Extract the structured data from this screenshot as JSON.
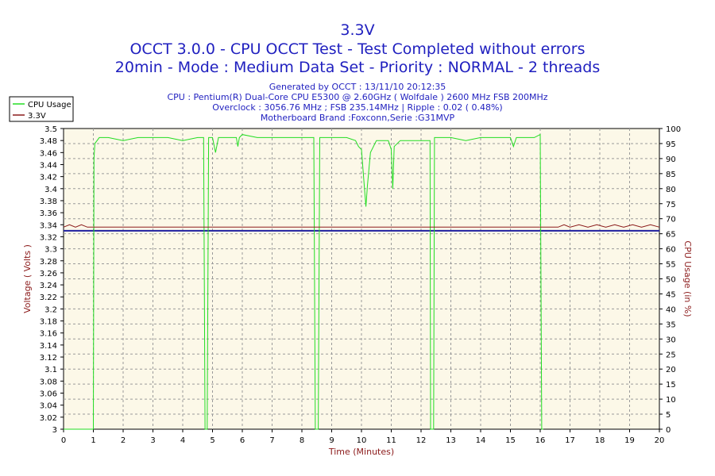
{
  "chart_data": {
    "type": "line",
    "title": "3.3V",
    "subtitle1": "OCCT 3.0.0 - CPU OCCT Test - Test Completed without errors",
    "subtitle2": "20min - Mode : Medium Data Set - Priority : NORMAL - 2 threads",
    "info": [
      "Generated by OCCT : 13/11/10 20:12:35",
      "CPU : Pentium(R) Dual-Core CPU E5300 @ 2.60GHz ( Wolfdale ) 2600 MHz FSB 200MHz",
      "Overclock : 3056.76 MHz ; FSB 235.14MHz | Ripple : 0.02 ( 0.48%)",
      "Motherboard Brand :Foxconn,Serie :G31MVP"
    ],
    "xlabel": "Time (Minutes)",
    "ylabel_left": "Voltage ( Volts )",
    "ylabel_right": "CPU Usage (in %)",
    "xlim": [
      0,
      20
    ],
    "ylim_left": [
      3.0,
      3.5
    ],
    "ylim_right": [
      0,
      100
    ],
    "x_ticks": [
      "0",
      "1",
      "2",
      "3",
      "4",
      "5",
      "6",
      "7",
      "8",
      "9",
      "10",
      "11",
      "12",
      "13",
      "14",
      "15",
      "16",
      "17",
      "18",
      "19",
      "20"
    ],
    "y_left_ticks": [
      "3",
      "3.02",
      "3.04",
      "3.06",
      "3.08",
      "3.1",
      "3.12",
      "3.14",
      "3.16",
      "3.18",
      "3.2",
      "3.22",
      "3.24",
      "3.26",
      "3.28",
      "3.3",
      "3.32",
      "3.34",
      "3.36",
      "3.38",
      "3.4",
      "3.42",
      "3.44",
      "3.46",
      "3.48",
      "3.5"
    ],
    "y_right_ticks": [
      "0",
      "5",
      "10",
      "15",
      "20",
      "25",
      "30",
      "35",
      "40",
      "45",
      "50",
      "55",
      "60",
      "65",
      "70",
      "75",
      "80",
      "85",
      "90",
      "95",
      "100"
    ],
    "legend": [
      {
        "name": "CPU Usage",
        "color": "#22dd22"
      },
      {
        "name": "3.3V",
        "color": "#8b1a1a"
      }
    ],
    "legend_position": "top-left",
    "grid": true,
    "colors": {
      "plot_bg": "#fcf8e8",
      "grid": "#9a9a9a",
      "cpu": "#22dd22",
      "voltage": "#8b1a1a",
      "reference_line": "#1f1f9f",
      "title": "#1f1fbf"
    },
    "series": [
      {
        "name": "CPU Usage",
        "axis": "right",
        "points": [
          [
            0.0,
            0
          ],
          [
            0.99,
            0
          ],
          [
            1.0,
            0
          ],
          [
            1.02,
            90
          ],
          [
            1.05,
            95
          ],
          [
            1.2,
            97
          ],
          [
            1.5,
            97
          ],
          [
            2.0,
            96
          ],
          [
            2.5,
            97
          ],
          [
            3.0,
            97
          ],
          [
            3.5,
            97
          ],
          [
            4.0,
            96
          ],
          [
            4.5,
            97
          ],
          [
            4.7,
            97
          ],
          [
            4.75,
            0
          ],
          [
            4.82,
            0
          ],
          [
            4.87,
            97
          ],
          [
            5.0,
            97
          ],
          [
            5.1,
            92
          ],
          [
            5.2,
            97
          ],
          [
            5.5,
            97
          ],
          [
            5.8,
            97
          ],
          [
            5.85,
            94
          ],
          [
            5.9,
            97
          ],
          [
            6.0,
            98
          ],
          [
            6.5,
            97
          ],
          [
            7.0,
            97
          ],
          [
            7.5,
            97
          ],
          [
            8.0,
            97
          ],
          [
            8.4,
            97
          ],
          [
            8.45,
            0
          ],
          [
            8.55,
            0
          ],
          [
            8.6,
            97
          ],
          [
            9.0,
            97
          ],
          [
            9.5,
            97
          ],
          [
            9.8,
            96
          ],
          [
            9.9,
            94
          ],
          [
            10.0,
            93
          ],
          [
            10.1,
            80
          ],
          [
            10.15,
            74
          ],
          [
            10.2,
            81
          ],
          [
            10.3,
            92
          ],
          [
            10.5,
            96
          ],
          [
            10.9,
            96
          ],
          [
            11.0,
            93
          ],
          [
            11.05,
            80
          ],
          [
            11.1,
            94
          ],
          [
            11.3,
            96
          ],
          [
            11.6,
            96
          ],
          [
            12.0,
            96
          ],
          [
            12.3,
            96
          ],
          [
            12.32,
            0
          ],
          [
            12.42,
            0
          ],
          [
            12.45,
            97
          ],
          [
            12.7,
            97
          ],
          [
            13.0,
            97
          ],
          [
            13.5,
            96
          ],
          [
            14.0,
            97
          ],
          [
            14.5,
            97
          ],
          [
            15.0,
            97
          ],
          [
            15.1,
            94
          ],
          [
            15.2,
            97
          ],
          [
            15.5,
            97
          ],
          [
            15.8,
            97
          ],
          [
            16.0,
            98
          ],
          [
            16.05,
            0
          ],
          [
            16.1,
            0
          ]
        ]
      },
      {
        "name": "3.3V",
        "axis": "left",
        "points": [
          [
            0.0,
            3.336
          ],
          [
            0.2,
            3.34
          ],
          [
            0.4,
            3.336
          ],
          [
            0.6,
            3.34
          ],
          [
            0.8,
            3.336
          ],
          [
            1.0,
            3.336
          ],
          [
            16.6,
            3.336
          ],
          [
            16.8,
            3.34
          ],
          [
            17.0,
            3.336
          ],
          [
            17.3,
            3.34
          ],
          [
            17.6,
            3.336
          ],
          [
            17.9,
            3.34
          ],
          [
            18.2,
            3.336
          ],
          [
            18.5,
            3.34
          ],
          [
            18.8,
            3.336
          ],
          [
            19.1,
            3.34
          ],
          [
            19.4,
            3.336
          ],
          [
            19.7,
            3.34
          ],
          [
            20.0,
            3.336
          ]
        ]
      }
    ],
    "reference_line_value": 3.33
  }
}
